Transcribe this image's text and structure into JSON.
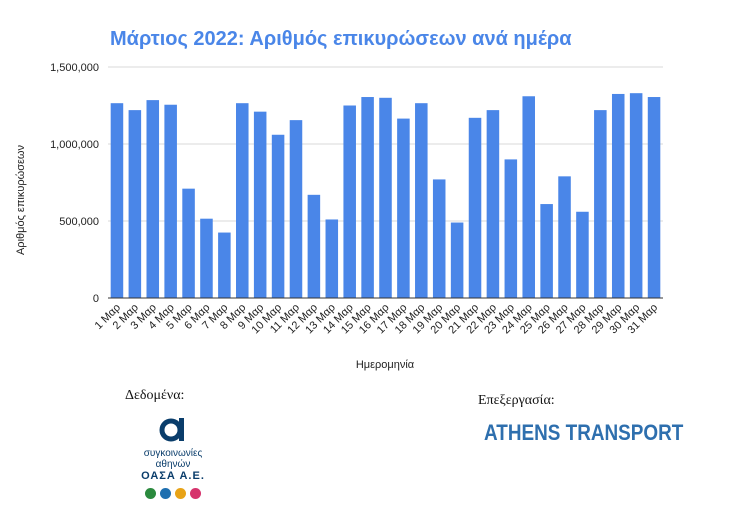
{
  "chart_data": {
    "type": "bar",
    "title": "Μάρτιος 2022: Αριθμός επικυρώσεων ανά ημέρα",
    "xlabel": "Ημερομηνία",
    "ylabel": "Αριθμός επικυρώσεων",
    "ylim": [
      0,
      1500000
    ],
    "yticks": [
      0,
      500000,
      1000000,
      1500000
    ],
    "ytick_labels": [
      "0",
      "500,000",
      "1,000,000",
      "1,500,000"
    ],
    "grid": true,
    "bar_color": "#4a86e8",
    "categories": [
      "1 Μαρ",
      "2 Μαρ",
      "3 Μαρ",
      "4 Μαρ",
      "5 Μαρ",
      "6 Μαρ",
      "7 Μαρ",
      "8 Μαρ",
      "9 Μαρ",
      "10 Μαρ",
      "11 Μαρ",
      "12 Μαρ",
      "13 Μαρ",
      "14 Μαρ",
      "15 Μαρ",
      "16 Μαρ",
      "17 Μαρ",
      "18 Μαρ",
      "19 Μαρ",
      "20 Μαρ",
      "21 Μαρ",
      "22 Μαρ",
      "23 Μαρ",
      "24 Μαρ",
      "25 Μαρ",
      "26 Μαρ",
      "27 Μαρ",
      "28 Μαρ",
      "29 Μαρ",
      "30 Μαρ",
      "31 Μαρ"
    ],
    "values": [
      1265000,
      1220000,
      1285000,
      1255000,
      710000,
      515000,
      425000,
      1265000,
      1210000,
      1060000,
      1155000,
      670000,
      510000,
      1250000,
      1305000,
      1300000,
      1165000,
      1265000,
      770000,
      490000,
      1170000,
      1220000,
      900000,
      1310000,
      610000,
      790000,
      560000,
      1220000,
      1325000,
      1330000,
      1305000
    ]
  },
  "footer": {
    "data_label": "Δεδομένα:",
    "processing_label": "Επεξεργασία:",
    "oasa": {
      "line1": "συγκοινωνίες",
      "line2": "αθηνών",
      "name": "ΟΑΣΑ Α.Ε.",
      "mode_colors": [
        "#2b8a3e",
        "#1e6fb0",
        "#e8a317",
        "#d6336c"
      ]
    },
    "athens_transport": "ATHENS TRANSPORT"
  }
}
